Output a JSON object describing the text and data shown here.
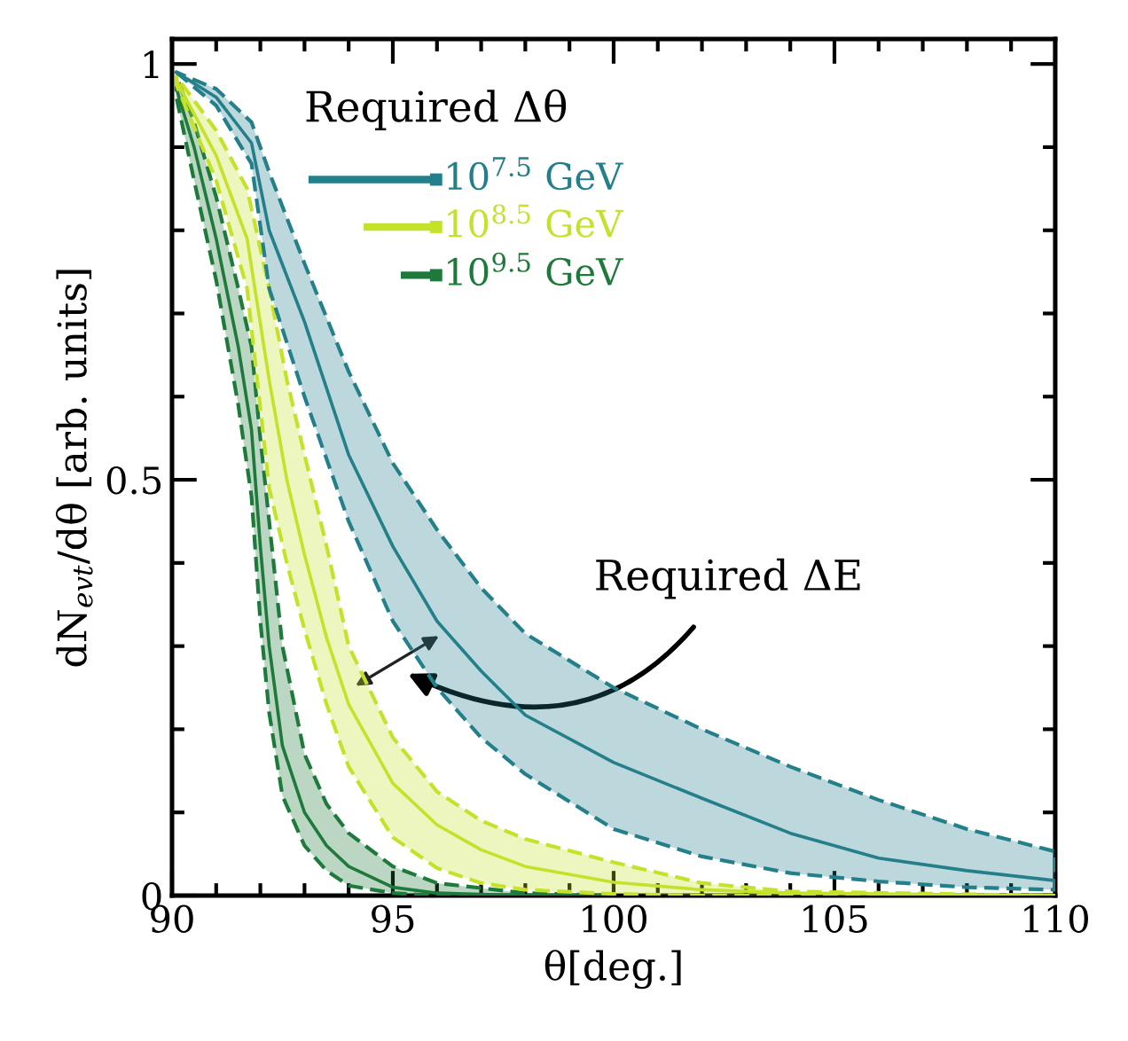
{
  "chart_data": {
    "type": "line",
    "xlabel": "θ[deg.]",
    "ylabel": "dN$_{evt}$/dθ [arb. units]",
    "legend_title": "Required Δθ",
    "xlim": [
      90,
      110
    ],
    "xticks": [
      90,
      95,
      100,
      105,
      110
    ],
    "ylim": [
      0,
      1.03
    ],
    "yticks": [
      0,
      0.5,
      1
    ],
    "grid": false,
    "series": [
      {
        "color": "#237f8a",
        "x": [
          90.1,
          91,
          91.8,
          92.2,
          93,
          94,
          95,
          96,
          97,
          98,
          100,
          102,
          104,
          106,
          108,
          110
        ],
        "values": [
          0.99,
          0.96,
          0.905,
          0.8,
          0.69,
          0.53,
          0.42,
          0.33,
          0.27,
          0.217,
          0.16,
          0.117,
          0.075,
          0.045,
          0.03,
          0.018
        ],
        "lower": [
          0.99,
          0.95,
          0.88,
          0.73,
          0.6,
          0.45,
          0.33,
          0.25,
          0.19,
          0.146,
          0.08,
          0.047,
          0.027,
          0.017,
          0.01,
          0.007
        ],
        "upper": [
          0.99,
          0.97,
          0.93,
          0.87,
          0.76,
          0.63,
          0.52,
          0.44,
          0.37,
          0.315,
          0.25,
          0.2,
          0.155,
          0.115,
          0.08,
          0.053
        ]
      },
      {
        "color": "#c5e22a",
        "x": [
          90.1,
          91,
          91.7,
          92.2,
          92.6,
          93,
          93.5,
          94,
          95,
          96,
          97,
          98,
          100,
          102,
          104,
          110
        ],
        "values": [
          0.98,
          0.89,
          0.79,
          0.62,
          0.5,
          0.41,
          0.31,
          0.23,
          0.135,
          0.085,
          0.055,
          0.035,
          0.016,
          0.007,
          0.003,
          0
        ],
        "lower": [
          0.975,
          0.86,
          0.73,
          0.49,
          0.4,
          0.32,
          0.23,
          0.155,
          0.07,
          0.033,
          0.015,
          0.007,
          0.002,
          0,
          0,
          0
        ],
        "upper": [
          0.985,
          0.92,
          0.85,
          0.73,
          0.62,
          0.53,
          0.42,
          0.3,
          0.19,
          0.125,
          0.09,
          0.068,
          0.04,
          0.015,
          0.005,
          0
        ]
      },
      {
        "color": "#1e7a3a",
        "x": [
          90.1,
          90.5,
          91,
          91.5,
          91.8,
          92,
          92.2,
          92.5,
          93,
          93.5,
          94,
          95,
          96,
          98,
          100
        ],
        "values": [
          0.97,
          0.9,
          0.79,
          0.66,
          0.56,
          0.42,
          0.3,
          0.18,
          0.1,
          0.06,
          0.035,
          0.01,
          0.003,
          0,
          0
        ],
        "lower": [
          0.96,
          0.86,
          0.74,
          0.59,
          0.48,
          0.33,
          0.22,
          0.12,
          0.06,
          0.03,
          0.012,
          0.003,
          0,
          0,
          0
        ],
        "upper": [
          0.985,
          0.93,
          0.84,
          0.73,
          0.66,
          0.55,
          0.45,
          0.3,
          0.17,
          0.11,
          0.075,
          0.035,
          0.015,
          0.003,
          0
        ]
      },
      {
        "type": "scatter",
        "marker": "square",
        "name": "10$^{7.5}$ GeV",
        "color": "#237f8a",
        "x": [
          95.98
        ],
        "values": [
          0.861
        ],
        "xerrors": [
          [
            93.09,
            95.98
          ]
        ]
      },
      {
        "type": "scatter",
        "marker": "square",
        "name": "10$^{8.5}$ GeV",
        "color": "#c5e22a",
        "x": [
          95.98
        ],
        "values": [
          0.804
        ],
        "xerrors": [
          [
            94.34,
            95.98
          ]
        ]
      },
      {
        "type": "scatter",
        "marker": "square",
        "name": "10$^{9.5}$ GeV",
        "color": "#1e7a3a",
        "x": [
          95.98
        ],
        "values": [
          0.746
        ],
        "xerrors": [
          [
            95.18,
            95.98
          ]
        ]
      }
    ],
    "annotations": [
      "Required ΔE"
    ]
  }
}
